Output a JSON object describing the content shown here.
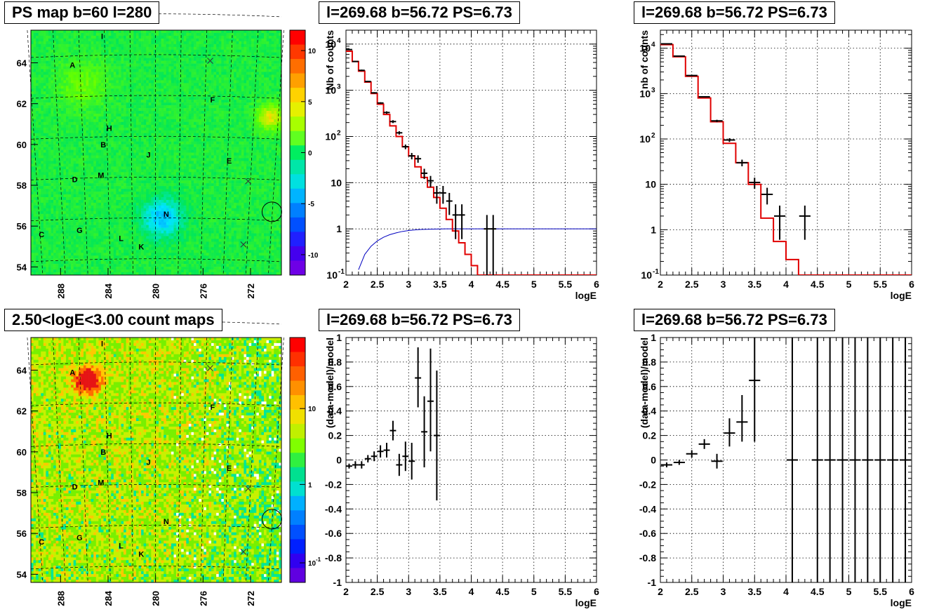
{
  "panels": {
    "ps_map": {
      "title": "PS map b=60 l=280",
      "x_ticks": [
        "288",
        "284",
        "280",
        "276",
        "272"
      ],
      "y_ticks": [
        "54",
        "56",
        "58",
        "60",
        "62",
        "64"
      ],
      "colorbar_ticks": [
        "10",
        "5",
        "0",
        "-5",
        "-10"
      ]
    },
    "count_map": {
      "title": "2.50<logE<3.00 count maps",
      "x_ticks": [
        "288",
        "284",
        "280",
        "276",
        "272"
      ],
      "y_ticks": [
        "54",
        "56",
        "58",
        "60",
        "62",
        "64"
      ],
      "colorbar_ticks": [
        "10",
        "1",
        "10"
      ],
      "colorbar_exp": "-1"
    },
    "spec1": {
      "title": "l=269.68 b=56.72 PS=6.73",
      "xlabel": "logE",
      "ylabel": "Nb of counts"
    },
    "spec2": {
      "title": "l=269.68 b=56.72 PS=6.73",
      "xlabel": "logE",
      "ylabel": "nb of counts"
    },
    "res1": {
      "title": "l=269.68 b=56.72 PS=6.73",
      "xlabel": "logE",
      "ylabel": "(data-model)/model"
    },
    "res2": {
      "title": "l=269.68 b=56.72 PS=6.73",
      "xlabel": "logE",
      "ylabel": "(data-model)/model"
    }
  },
  "sky_labels": [
    {
      "t": "A",
      "l": 287.0,
      "b": 63.9
    },
    {
      "t": "B",
      "l": 284.4,
      "b": 60.0
    },
    {
      "t": "C",
      "l": 289.6,
      "b": 55.6
    },
    {
      "t": "D",
      "l": 286.8,
      "b": 58.3
    },
    {
      "t": "E",
      "l": 273.8,
      "b": 59.2
    },
    {
      "t": "F",
      "l": 275.2,
      "b": 62.2
    },
    {
      "t": "G",
      "l": 286.4,
      "b": 55.8
    },
    {
      "t": "H",
      "l": 283.9,
      "b": 60.8
    },
    {
      "t": "I",
      "l": 284.5,
      "b": 65.3
    },
    {
      "t": "J",
      "l": 280.6,
      "b": 59.5
    },
    {
      "t": "K",
      "l": 281.2,
      "b": 55.0
    },
    {
      "t": "L",
      "l": 282.9,
      "b": 55.4
    },
    {
      "t": "M",
      "l": 284.6,
      "b": 58.5
    },
    {
      "t": "N",
      "l": 279.1,
      "b": 56.6
    }
  ],
  "chart_data": [
    {
      "type": "heatmap",
      "name": "ps_map",
      "xlim": [
        290.5,
        269.4
      ],
      "ylim": [
        53.6,
        65.6
      ],
      "x_ticks": [
        288,
        284,
        280,
        276,
        272
      ],
      "y_ticks": [
        54,
        56,
        58,
        60,
        62,
        64
      ],
      "colorbar": {
        "min": -12,
        "max": 12,
        "ticks": [
          10,
          5,
          0,
          -5,
          -10
        ]
      },
      "markers": [
        {
          "type": "circle",
          "l": 270.2,
          "b": 56.7
        },
        {
          "type": "x",
          "l": 275.4,
          "b": 64.1
        },
        {
          "type": "x",
          "l": 272.2,
          "b": 58.2
        },
        {
          "type": "x",
          "l": 272.6,
          "b": 55.1
        }
      ]
    },
    {
      "type": "heatmap",
      "name": "count_map",
      "xlim": [
        290.5,
        269.4
      ],
      "ylim": [
        53.6,
        65.6
      ],
      "x_ticks": [
        288,
        284,
        280,
        276,
        272
      ],
      "y_ticks": [
        54,
        56,
        58,
        60,
        62,
        64
      ],
      "colorbar": {
        "scale": "log",
        "ticks": [
          10,
          1,
          0.1
        ]
      },
      "markers": [
        {
          "type": "circle",
          "l": 270.2,
          "b": 56.7
        },
        {
          "type": "x",
          "l": 275.4,
          "b": 64.1
        },
        {
          "type": "x",
          "l": 272.2,
          "b": 58.2
        },
        {
          "type": "x",
          "l": 272.6,
          "b": 55.1
        }
      ]
    },
    {
      "type": "line",
      "name": "spec1",
      "xlim": [
        2,
        6
      ],
      "ylim": [
        0.1,
        20000
      ],
      "ylog": true,
      "grid": true,
      "x_ticks": [
        2,
        2.5,
        3,
        3.5,
        4,
        4.5,
        5,
        5.5,
        6
      ],
      "model_step": {
        "color": "#e00000",
        "edges": [
          2.0,
          2.1,
          2.2,
          2.3,
          2.4,
          2.5,
          2.6,
          2.7,
          2.8,
          2.9,
          3.0,
          3.1,
          3.2,
          3.3,
          3.4,
          3.5,
          3.6,
          3.7,
          3.8,
          3.9,
          4.0,
          4.1,
          6.0
        ],
        "values": [
          7000,
          4200,
          2600,
          1500,
          850,
          500,
          300,
          170,
          100,
          60,
          38,
          22,
          13,
          8,
          4.8,
          2.8,
          1.6,
          0.9,
          0.5,
          0.28,
          0.16,
          0.09
        ]
      },
      "blue_curve": {
        "color": "#0000c0",
        "x": [
          2.2,
          2.3,
          2.4,
          2.5,
          2.6,
          2.7,
          2.8,
          2.9,
          3.0,
          3.1,
          3.2,
          3.4,
          3.6,
          4.0,
          6.0
        ],
        "y": [
          0.13,
          0.28,
          0.42,
          0.55,
          0.66,
          0.75,
          0.82,
          0.88,
          0.92,
          0.95,
          0.97,
          0.99,
          1.0,
          1.0,
          1.0
        ]
      },
      "data_points": [
        {
          "x": 2.05,
          "y": 7600,
          "lo": 7400,
          "hi": 7800
        },
        {
          "x": 2.15,
          "y": 4200,
          "lo": 4100,
          "hi": 4300
        },
        {
          "x": 2.25,
          "y": 2700,
          "lo": 2600,
          "hi": 2800
        },
        {
          "x": 2.35,
          "y": 1550,
          "lo": 1500,
          "hi": 1600
        },
        {
          "x": 2.45,
          "y": 880,
          "lo": 850,
          "hi": 910
        },
        {
          "x": 2.55,
          "y": 530,
          "lo": 510,
          "hi": 550
        },
        {
          "x": 2.65,
          "y": 330,
          "lo": 310,
          "hi": 350
        },
        {
          "x": 2.75,
          "y": 210,
          "lo": 195,
          "hi": 225
        },
        {
          "x": 2.85,
          "y": 120,
          "lo": 110,
          "hi": 130
        },
        {
          "x": 2.95,
          "y": 60,
          "lo": 53,
          "hi": 67
        },
        {
          "x": 3.05,
          "y": 38,
          "lo": 32,
          "hi": 44
        },
        {
          "x": 3.15,
          "y": 33,
          "lo": 27,
          "hi": 39
        },
        {
          "x": 3.25,
          "y": 16,
          "lo": 12,
          "hi": 20
        },
        {
          "x": 3.35,
          "y": 11,
          "lo": 8,
          "hi": 14
        },
        {
          "x": 3.45,
          "y": 6,
          "lo": 3.5,
          "hi": 8.5
        },
        {
          "x": 3.55,
          "y": 6,
          "lo": 3.5,
          "hi": 8.5
        },
        {
          "x": 3.65,
          "y": 4,
          "lo": 2.0,
          "hi": 6.0
        },
        {
          "x": 3.75,
          "y": 2,
          "lo": 0.6,
          "hi": 3.4
        },
        {
          "x": 3.85,
          "y": 2,
          "lo": 0.6,
          "hi": 3.4
        },
        {
          "x": 4.25,
          "y": 1,
          "lo": 0.1,
          "hi": 2.0
        },
        {
          "x": 4.35,
          "y": 1,
          "lo": 0.1,
          "hi": 2.0
        }
      ]
    },
    {
      "type": "line",
      "name": "spec2",
      "xlim": [
        2,
        6
      ],
      "ylim": [
        0.1,
        25000
      ],
      "ylog": true,
      "grid": true,
      "x_ticks": [
        2,
        2.5,
        3,
        3.5,
        4,
        4.5,
        5,
        5.5,
        6
      ],
      "model_step": {
        "color": "#e00000",
        "edges": [
          2.0,
          2.2,
          2.4,
          2.6,
          2.8,
          3.0,
          3.2,
          3.4,
          3.6,
          3.8,
          4.0,
          4.2,
          6.0
        ],
        "values": [
          12000,
          6500,
          2400,
          800,
          240,
          80,
          30,
          10,
          1.8,
          0.55,
          0.22,
          0.1
        ]
      },
      "data_points": [
        {
          "x": 2.1,
          "y": 12500,
          "lo": 12300,
          "hi": 12700
        },
        {
          "x": 2.3,
          "y": 6700,
          "lo": 6550,
          "hi": 6850
        },
        {
          "x": 2.5,
          "y": 2500,
          "lo": 2400,
          "hi": 2600
        },
        {
          "x": 2.7,
          "y": 850,
          "lo": 820,
          "hi": 880
        },
        {
          "x": 2.9,
          "y": 250,
          "lo": 235,
          "hi": 265
        },
        {
          "x": 3.1,
          "y": 95,
          "lo": 86,
          "hi": 104
        },
        {
          "x": 3.3,
          "y": 30,
          "lo": 25,
          "hi": 35
        },
        {
          "x": 3.5,
          "y": 11,
          "lo": 8,
          "hi": 14
        },
        {
          "x": 3.7,
          "y": 6,
          "lo": 3.6,
          "hi": 8.4
        },
        {
          "x": 3.9,
          "y": 2,
          "lo": 0.6,
          "hi": 3.4
        },
        {
          "x": 4.3,
          "y": 2,
          "lo": 0.6,
          "hi": 3.4
        }
      ]
    },
    {
      "type": "scatter",
      "name": "res1",
      "xlim": [
        2,
        6
      ],
      "ylim": [
        -1,
        1
      ],
      "grid": true,
      "x_ticks": [
        2,
        2.5,
        3,
        3.5,
        4,
        4.5,
        5,
        5.5,
        6
      ],
      "y_ticks": [
        -1,
        -0.8,
        -0.6,
        -0.4,
        -0.2,
        0,
        0.2,
        0.4,
        0.6,
        0.8,
        1
      ],
      "data_points": [
        {
          "x": 2.05,
          "y": -0.05,
          "lo": -0.07,
          "hi": -0.03
        },
        {
          "x": 2.15,
          "y": -0.04,
          "lo": -0.07,
          "hi": -0.01
        },
        {
          "x": 2.25,
          "y": -0.04,
          "lo": -0.07,
          "hi": -0.01
        },
        {
          "x": 2.35,
          "y": 0.01,
          "lo": -0.02,
          "hi": 0.04
        },
        {
          "x": 2.45,
          "y": 0.03,
          "lo": -0.01,
          "hi": 0.07
        },
        {
          "x": 2.55,
          "y": 0.07,
          "lo": 0.02,
          "hi": 0.12
        },
        {
          "x": 2.65,
          "y": 0.08,
          "lo": 0.02,
          "hi": 0.14
        },
        {
          "x": 2.75,
          "y": 0.24,
          "lo": 0.16,
          "hi": 0.32
        },
        {
          "x": 2.85,
          "y": -0.04,
          "lo": -0.13,
          "hi": 0.05
        },
        {
          "x": 2.95,
          "y": 0.03,
          "lo": -0.09,
          "hi": 0.15
        },
        {
          "x": 3.05,
          "y": -0.01,
          "lo": -0.16,
          "hi": 0.14
        },
        {
          "x": 3.15,
          "y": 0.67,
          "lo": 0.43,
          "hi": 0.92
        },
        {
          "x": 3.25,
          "y": 0.23,
          "lo": -0.06,
          "hi": 0.52
        },
        {
          "x": 3.35,
          "y": 0.48,
          "lo": 0.07,
          "hi": 0.91
        },
        {
          "x": 3.45,
          "y": 0.2,
          "lo": -0.33,
          "hi": 0.73
        }
      ]
    },
    {
      "type": "scatter",
      "name": "res2",
      "xlim": [
        2,
        6
      ],
      "ylim": [
        -1,
        1
      ],
      "grid": true,
      "x_ticks": [
        2,
        2.5,
        3,
        3.5,
        4,
        4.5,
        5,
        5.5,
        6
      ],
      "y_ticks": [
        -1,
        -0.8,
        -0.6,
        -0.4,
        -0.2,
        0,
        0.2,
        0.4,
        0.6,
        0.8,
        1
      ],
      "data_points": [
        {
          "x": 2.1,
          "y": -0.04,
          "lo": -0.06,
          "hi": -0.02
        },
        {
          "x": 2.3,
          "y": -0.02,
          "lo": -0.04,
          "hi": 0.0
        },
        {
          "x": 2.5,
          "y": 0.05,
          "lo": 0.02,
          "hi": 0.08
        },
        {
          "x": 2.7,
          "y": 0.13,
          "lo": 0.09,
          "hi": 0.17
        },
        {
          "x": 2.9,
          "y": -0.01,
          "lo": -0.07,
          "hi": 0.05
        },
        {
          "x": 3.1,
          "y": 0.22,
          "lo": 0.11,
          "hi": 0.34
        },
        {
          "x": 3.3,
          "y": 0.31,
          "lo": 0.15,
          "hi": 0.53
        },
        {
          "x": 3.5,
          "y": 0.65,
          "lo": 0.15,
          "hi": 1.0
        },
        {
          "x": 4.1,
          "y": 0,
          "lo": -1,
          "hi": 1
        },
        {
          "x": 4.5,
          "y": 0,
          "lo": -1,
          "hi": 1
        },
        {
          "x": 4.7,
          "y": 0,
          "lo": -1,
          "hi": 1
        },
        {
          "x": 4.9,
          "y": 0,
          "lo": -1,
          "hi": 1
        },
        {
          "x": 5.1,
          "y": 0,
          "lo": -1,
          "hi": 1
        },
        {
          "x": 5.3,
          "y": 0,
          "lo": -1,
          "hi": 1
        },
        {
          "x": 5.5,
          "y": 0,
          "lo": -1,
          "hi": 1
        },
        {
          "x": 5.7,
          "y": 0,
          "lo": -1,
          "hi": 1
        },
        {
          "x": 5.9,
          "y": 0,
          "lo": -1,
          "hi": 1
        }
      ]
    }
  ]
}
